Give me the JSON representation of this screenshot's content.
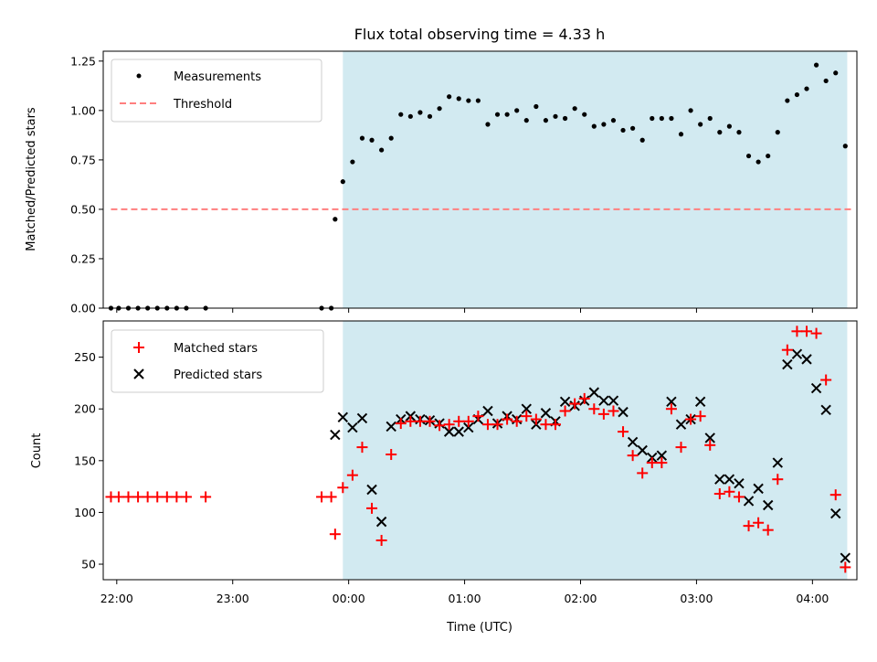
{
  "title": "Flux total observing time = 4.33 h",
  "colors": {
    "shade": "#add8e6",
    "threshold": "#ff7f7f",
    "measurements": "#000000",
    "matched": "#ff0000",
    "predicted": "#000000"
  },
  "chart_data": [
    {
      "type": "scatter",
      "name": "ratio",
      "ylabel": "Matched/Predicted stars",
      "ylim": [
        0,
        1.3
      ],
      "yticks": [
        0.0,
        0.25,
        0.5,
        0.75,
        1.0,
        1.25
      ],
      "ytick_labels": [
        "0.00",
        "0.25",
        "0.50",
        "0.75",
        "1.00",
        "1.25"
      ],
      "xlim": [
        "21:53",
        "04:23"
      ],
      "shaded_span": [
        "23:57",
        "04:18"
      ],
      "legend": {
        "placement": "upper-left",
        "entries": [
          "Measurements",
          "Threshold"
        ]
      },
      "threshold": {
        "label": "Threshold",
        "value": 0.5,
        "x": [
          "21:57",
          "04:21"
        ]
      },
      "series": [
        {
          "name": "Measurements",
          "marker": "dot",
          "x": [
            "21:57",
            "22:01",
            "22:06",
            "22:11",
            "22:16",
            "22:21",
            "22:26",
            "22:31",
            "22:36",
            "22:46",
            "23:46",
            "23:51",
            "23:53",
            "23:57",
            "00:02",
            "00:07",
            "00:12",
            "00:17",
            "00:22",
            "00:27",
            "00:32",
            "00:37",
            "00:42",
            "00:47",
            "00:52",
            "00:57",
            "01:02",
            "01:07",
            "01:12",
            "01:17",
            "01:22",
            "01:27",
            "01:32",
            "01:37",
            "01:42",
            "01:47",
            "01:52",
            "01:57",
            "02:02",
            "02:07",
            "02:12",
            "02:17",
            "02:22",
            "02:27",
            "02:32",
            "02:37",
            "02:42",
            "02:47",
            "02:52",
            "02:57",
            "03:02",
            "03:07",
            "03:12",
            "03:17",
            "03:22",
            "03:27",
            "03:32",
            "03:37",
            "03:42",
            "03:47",
            "03:52",
            "03:57",
            "04:02",
            "04:07",
            "04:12",
            "04:17"
          ],
          "y": [
            0,
            0,
            0,
            0,
            0,
            0,
            0,
            0,
            0,
            0,
            0,
            0,
            0.45,
            0.64,
            0.74,
            0.86,
            0.85,
            0.8,
            0.86,
            0.98,
            0.97,
            0.99,
            0.97,
            1.01,
            1.07,
            1.06,
            1.05,
            1.05,
            0.93,
            0.98,
            0.98,
            1.0,
            0.95,
            1.02,
            0.95,
            0.97,
            0.96,
            1.01,
            0.98,
            0.92,
            0.93,
            0.95,
            0.9,
            0.91,
            0.85,
            0.96,
            0.96,
            0.96,
            0.88,
            1.0,
            0.93,
            0.96,
            0.89,
            0.92,
            0.89,
            0.77,
            0.74,
            0.77,
            0.89,
            1.05,
            1.08,
            1.11,
            1.23,
            1.15,
            1.19,
            0.82
          ]
        }
      ]
    },
    {
      "type": "scatter",
      "name": "counts",
      "ylabel": "Count",
      "xlabel": "Time (UTC)",
      "ylim": [
        35,
        285
      ],
      "yticks": [
        50,
        100,
        150,
        200,
        250
      ],
      "ytick_labels": [
        "50",
        "100",
        "150",
        "200",
        "250"
      ],
      "xticks": [
        "22:00",
        "23:00",
        "00:00",
        "01:00",
        "02:00",
        "03:00",
        "04:00"
      ],
      "xtick_labels": [
        "22:00",
        "23:00",
        "00:00",
        "01:00",
        "02:00",
        "03:00",
        "04:00"
      ],
      "xlim": [
        "21:53",
        "04:23"
      ],
      "shaded_span": [
        "23:57",
        "04:18"
      ],
      "legend": {
        "placement": "upper-left",
        "entries": [
          "Matched stars",
          "Predicted stars"
        ]
      },
      "series": [
        {
          "name": "Matched stars",
          "marker": "plus",
          "x": [
            "21:57",
            "22:01",
            "22:06",
            "22:11",
            "22:16",
            "22:21",
            "22:26",
            "22:31",
            "22:36",
            "22:46",
            "23:46",
            "23:51",
            "23:53",
            "23:57",
            "00:02",
            "00:07",
            "00:12",
            "00:17",
            "00:22",
            "00:27",
            "00:32",
            "00:37",
            "00:42",
            "00:47",
            "00:52",
            "00:57",
            "01:02",
            "01:07",
            "01:12",
            "01:17",
            "01:22",
            "01:27",
            "01:32",
            "01:37",
            "01:42",
            "01:47",
            "01:52",
            "01:57",
            "02:02",
            "02:07",
            "02:12",
            "02:17",
            "02:22",
            "02:27",
            "02:32",
            "02:37",
            "02:42",
            "02:47",
            "02:52",
            "02:57",
            "03:02",
            "03:07",
            "03:12",
            "03:17",
            "03:22",
            "03:27",
            "03:32",
            "03:37",
            "03:42",
            "03:47",
            "03:52",
            "03:57",
            "04:02",
            "04:07",
            "04:12",
            "04:17"
          ],
          "y": [
            115,
            115,
            115,
            115,
            115,
            115,
            115,
            115,
            115,
            115,
            115,
            115,
            79,
            124,
            136,
            163,
            104,
            73,
            156,
            186,
            188,
            188,
            188,
            184,
            185,
            188,
            188,
            193,
            185,
            185,
            190,
            188,
            193,
            190,
            185,
            185,
            198,
            205,
            210,
            200,
            195,
            198,
            178,
            155,
            138,
            148,
            148,
            200,
            163,
            190,
            193,
            165,
            118,
            120,
            115,
            87,
            90,
            83,
            132,
            257,
            275,
            275,
            273,
            228,
            117,
            47
          ]
        },
        {
          "name": "Predicted stars",
          "marker": "x",
          "x": [
            "23:53",
            "23:57",
            "00:02",
            "00:07",
            "00:12",
            "00:17",
            "00:22",
            "00:27",
            "00:32",
            "00:37",
            "00:42",
            "00:47",
            "00:52",
            "00:57",
            "01:02",
            "01:07",
            "01:12",
            "01:17",
            "01:22",
            "01:27",
            "01:32",
            "01:37",
            "01:42",
            "01:47",
            "01:52",
            "01:57",
            "02:02",
            "02:07",
            "02:12",
            "02:17",
            "02:22",
            "02:27",
            "02:32",
            "02:37",
            "02:42",
            "02:47",
            "02:52",
            "02:57",
            "03:02",
            "03:07",
            "03:12",
            "03:17",
            "03:22",
            "03:27",
            "03:32",
            "03:37",
            "03:42",
            "03:47",
            "03:52",
            "03:57",
            "04:02",
            "04:07",
            "04:12",
            "04:17"
          ],
          "y": [
            175,
            192,
            182,
            191,
            122,
            91,
            183,
            190,
            193,
            190,
            189,
            186,
            178,
            178,
            182,
            190,
            198,
            186,
            193,
            190,
            200,
            185,
            196,
            188,
            207,
            203,
            208,
            216,
            208,
            208,
            197,
            168,
            160,
            153,
            155,
            207,
            185,
            190,
            207,
            172,
            132,
            132,
            128,
            111,
            123,
            107,
            148,
            243,
            253,
            248,
            220,
            199,
            99,
            56
          ]
        }
      ]
    }
  ]
}
